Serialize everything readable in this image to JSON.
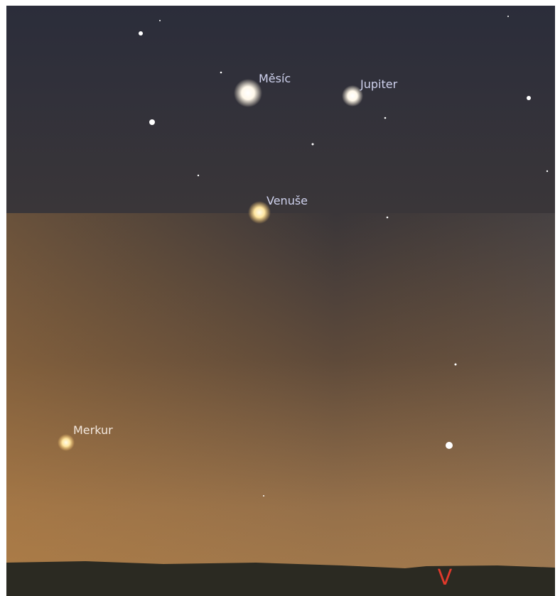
{
  "objects": [
    {
      "name": "Měsíc"
    },
    {
      "name": "Jupiter"
    },
    {
      "name": "Venuše"
    },
    {
      "name": "Merkur"
    }
  ],
  "cardinal": "V"
}
